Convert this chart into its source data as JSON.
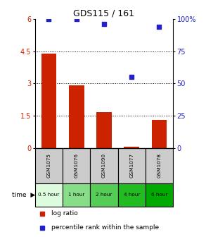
{
  "title": "GDS115 / 161",
  "categories": [
    "GSM1075",
    "GSM1076",
    "GSM1090",
    "GSM1077",
    "GSM1078"
  ],
  "time_labels": [
    "0.5 hour",
    "1 hour",
    "2 hour",
    "4 hour",
    "6 hour"
  ],
  "log_ratio": [
    4.4,
    2.9,
    1.65,
    0.05,
    1.3
  ],
  "percentile_rank": [
    100,
    100,
    96,
    55,
    94
  ],
  "bar_color": "#CC2200",
  "dot_color": "#2222CC",
  "left_ylim": [
    0,
    6
  ],
  "right_ylim": [
    0,
    100
  ],
  "left_yticks": [
    0,
    1.5,
    3.0,
    4.5,
    6.0
  ],
  "left_yticklabels": [
    "0",
    "1.5",
    "3",
    "4.5",
    "6"
  ],
  "right_yticks": [
    0,
    25,
    50,
    75,
    100
  ],
  "right_yticklabels": [
    "0",
    "25",
    "50",
    "75",
    "100%"
  ],
  "hline_positions": [
    1.5,
    3.0,
    4.5
  ],
  "time_colors": [
    "#ddfcdd",
    "#88dd88",
    "#55cc55",
    "#22bb22",
    "#00aa00"
  ],
  "gray_color": "#cccccc",
  "legend_bar_label": "log ratio",
  "legend_dot_label": "percentile rank within the sample"
}
